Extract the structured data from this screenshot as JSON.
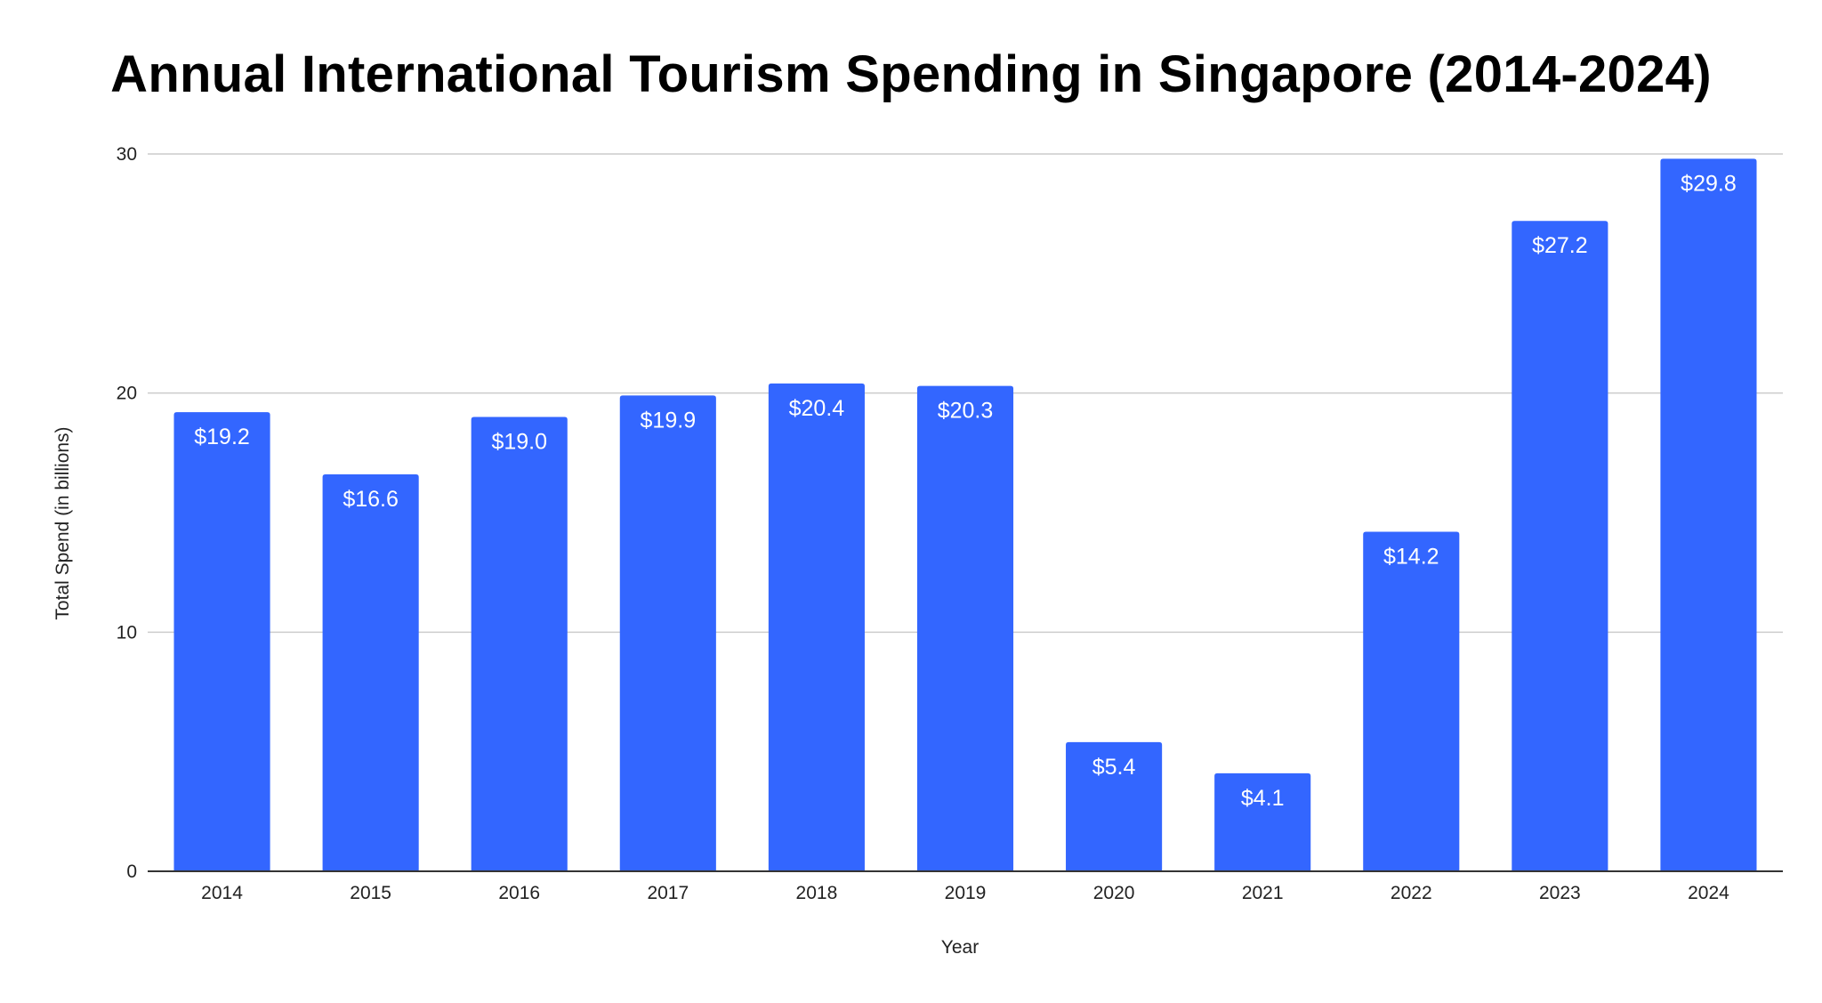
{
  "chart_data": {
    "type": "bar",
    "title": "Annual International Tourism Spending in Singapore (2014-2024)",
    "xlabel": "Year",
    "ylabel": "Total Spend (in billions)",
    "categories": [
      "2014",
      "2015",
      "2016",
      "2017",
      "2018",
      "2019",
      "2020",
      "2021",
      "2022",
      "2023",
      "2024"
    ],
    "values": [
      19.2,
      16.6,
      19.0,
      19.9,
      20.4,
      20.3,
      5.4,
      4.1,
      14.2,
      27.2,
      29.8
    ],
    "data_labels": [
      "$19.2",
      "$16.6",
      "$19.0",
      "$19.9",
      "$20.4",
      "$20.3",
      "$5.4",
      "$4.1",
      "$14.2",
      "$27.2",
      "$29.8"
    ],
    "ylim": [
      0,
      30
    ],
    "yticks": [
      "0",
      "10",
      "20",
      "30"
    ],
    "grid": true,
    "legend": "none",
    "bar_color": "#3366ff",
    "gridline_color": "#cccccc",
    "axis_color": "#333333"
  }
}
